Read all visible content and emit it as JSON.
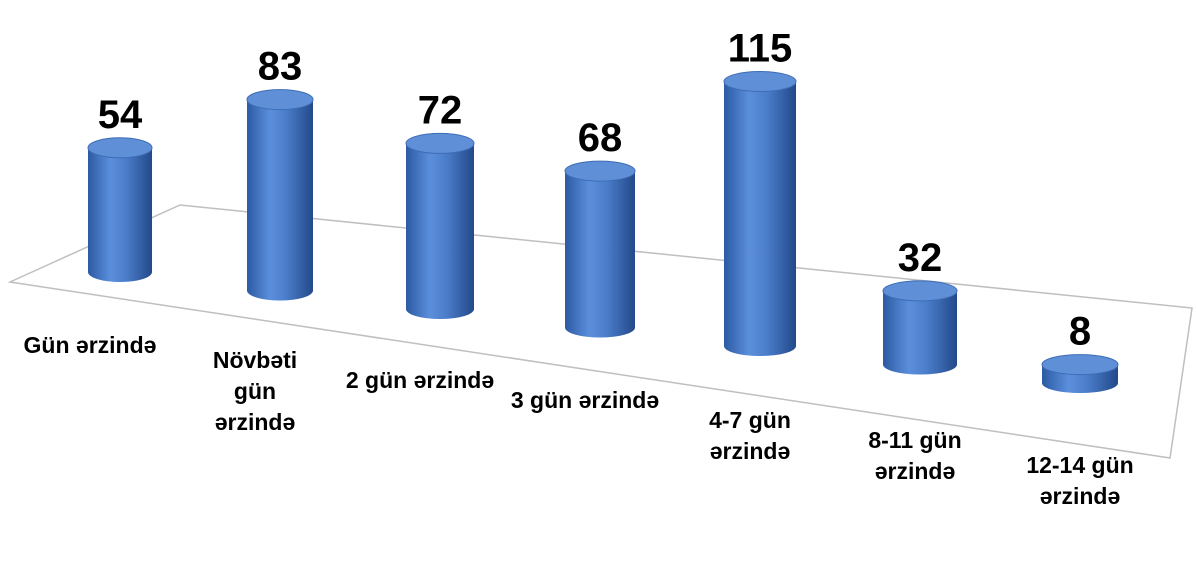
{
  "chart_data": {
    "type": "bar3d",
    "categories": [
      "Gün ərzində",
      "Növbəti gün ərzində",
      "2 gün ərzində",
      "3 gün ərzində",
      "4-7 gün ərzində",
      "8-11 gün ərzində",
      "12-14 gün ərzində"
    ],
    "values": [
      54,
      83,
      72,
      68,
      115,
      32,
      8
    ],
    "color": "#4a7cc9"
  }
}
